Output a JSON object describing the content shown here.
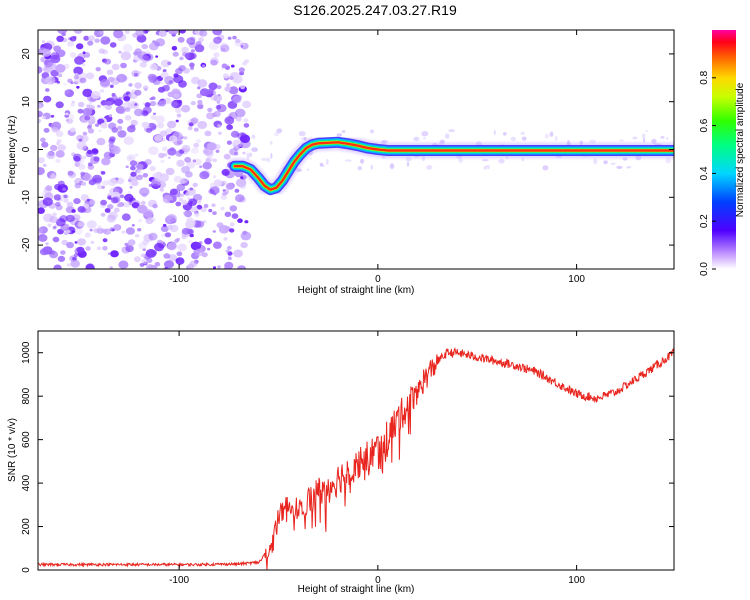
{
  "title": "S126.2025.247.03.27.R19",
  "chart_data": [
    {
      "type": "heatmap",
      "xlabel": "Height of straight line (km)",
      "ylabel": "Frequency (Hz)",
      "xlim": [
        -171,
        149
      ],
      "ylim": [
        -25,
        25
      ],
      "xticks": [
        -100,
        0,
        100
      ],
      "yticks": [
        -20,
        -10,
        0,
        10,
        20
      ],
      "noise_region_x": [
        -171,
        -66
      ],
      "ridge": {
        "x": [
          -72,
          -68,
          -64,
          -60,
          -57,
          -54,
          -51,
          -48,
          -45,
          -42,
          -39,
          -36,
          -33,
          -30,
          -25,
          -20,
          -15,
          -10,
          -5,
          0,
          5,
          10,
          20,
          30,
          40,
          50,
          60,
          70,
          80,
          90,
          100,
          110,
          120,
          130,
          140,
          149
        ],
        "y": [
          -3.5,
          -3.5,
          -4.2,
          -6.0,
          -7.6,
          -8.4,
          -8.0,
          -6.5,
          -4.5,
          -2.5,
          -1.0,
          0.3,
          1.0,
          1.3,
          1.4,
          1.5,
          1.2,
          0.8,
          0.3,
          0.0,
          -0.2,
          -0.2,
          -0.2,
          -0.2,
          -0.2,
          -0.2,
          -0.2,
          -0.2,
          -0.2,
          -0.2,
          -0.2,
          -0.2,
          -0.2,
          -0.2,
          -0.2,
          -0.2
        ]
      },
      "colorbar": {
        "label": "Normalized spectral amplitude",
        "range": [
          0.0,
          1.0
        ],
        "ticks": [
          "0.0",
          "0.2",
          "0.4",
          "0.6",
          "0.8"
        ],
        "tick_values": [
          0.0,
          0.2,
          0.4,
          0.6,
          0.8
        ]
      }
    },
    {
      "type": "line",
      "xlabel": "Height of straight line (km)",
      "ylabel": "SNR (10 * v/v)",
      "xlim": [
        -171,
        149
      ],
      "ylim": [
        0,
        1100
      ],
      "xticks": [
        -100,
        0,
        100
      ],
      "yticks": [
        0,
        200,
        400,
        600,
        800,
        1000
      ],
      "color": "#e8251e",
      "series": [
        {
          "name": "SNR",
          "x": [
            -171,
            -150,
            -120,
            -90,
            -70,
            -60,
            -55,
            -52,
            -50,
            -45,
            -40,
            -35,
            -30,
            -25,
            -20,
            -15,
            -10,
            -5,
            0,
            5,
            10,
            15,
            20,
            25,
            30,
            35,
            40,
            45,
            50,
            60,
            70,
            80,
            90,
            100,
            110,
            120,
            130,
            140,
            149
          ],
          "y": [
            25,
            25,
            25,
            25,
            28,
            35,
            80,
            180,
            250,
            300,
            280,
            320,
            360,
            380,
            420,
            460,
            500,
            520,
            560,
            620,
            690,
            760,
            830,
            900,
            960,
            1000,
            1000,
            990,
            980,
            960,
            940,
            910,
            860,
            810,
            790,
            820,
            880,
            940,
            1000
          ]
        }
      ]
    }
  ]
}
